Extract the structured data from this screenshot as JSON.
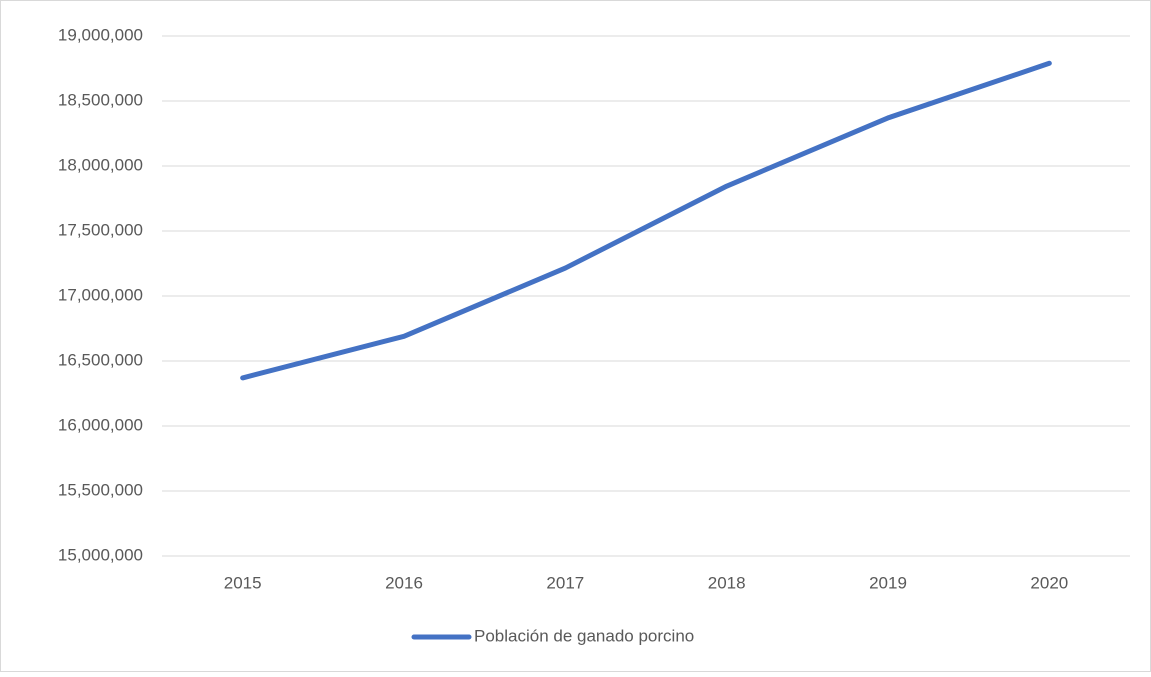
{
  "chart_data": {
    "type": "line",
    "categories": [
      "2015",
      "2016",
      "2017",
      "2018",
      "2019",
      "2020"
    ],
    "series": [
      {
        "name": "Población de ganado porcino",
        "color": "#4472c4",
        "values": [
          16370000,
          16690000,
          17215000,
          17845000,
          18370000,
          18790000
        ]
      }
    ],
    "ylim": [
      15000000,
      19000000
    ],
    "yticks": [
      {
        "value": 15000000,
        "label": "15,000,000"
      },
      {
        "value": 15500000,
        "label": "15,500,000"
      },
      {
        "value": 16000000,
        "label": "16,000,000"
      },
      {
        "value": 16500000,
        "label": "16,500,000"
      },
      {
        "value": 17000000,
        "label": "17,000,000"
      },
      {
        "value": 17500000,
        "label": "17,500,000"
      },
      {
        "value": 18000000,
        "label": "18,000,000"
      },
      {
        "value": 18500000,
        "label": "18,500,000"
      },
      {
        "value": 19000000,
        "label": "19,000,000"
      }
    ],
    "grid": true,
    "legend": "bottom"
  }
}
